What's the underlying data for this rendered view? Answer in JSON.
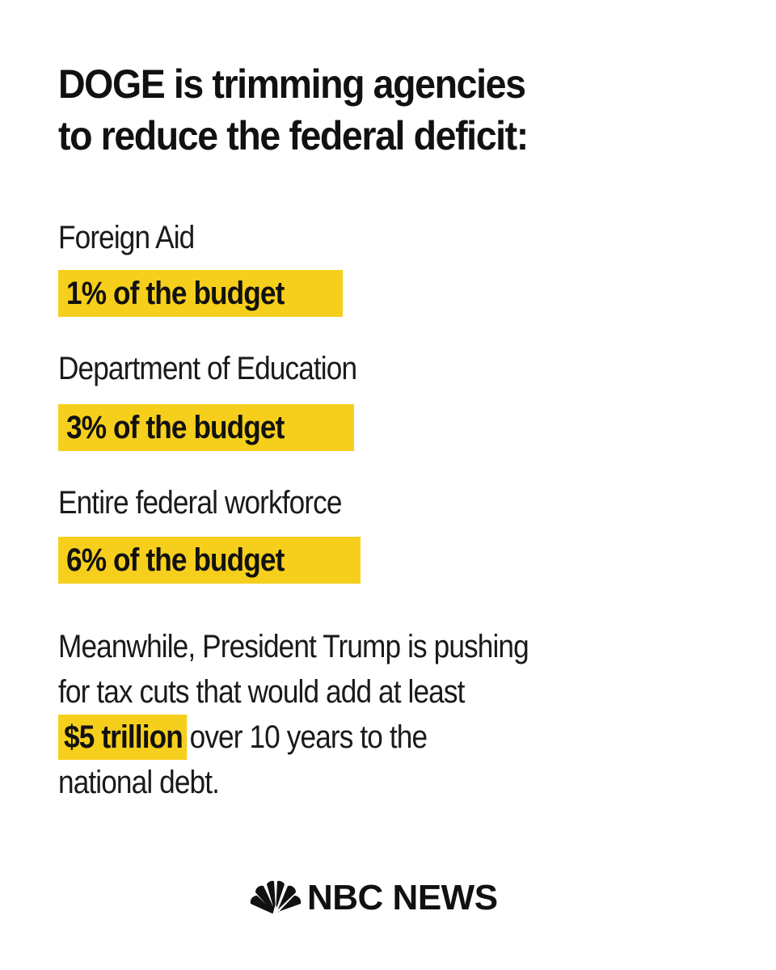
{
  "headline": {
    "line1": "DOGE is trimming agencies",
    "line2": "to reduce the federal deficit:"
  },
  "items": [
    {
      "label": "Foreign Aid",
      "value": "1% of the budget"
    },
    {
      "label": "Department of Education",
      "value": "3% of the budget"
    },
    {
      "label": "Entire federal workforce",
      "value": "6% of the budget"
    }
  ],
  "closing": {
    "line1": "Meanwhile, President Trump is pushing",
    "line2": "for tax cuts that would add at least",
    "amount": "$5 trillion",
    "line3_rest": "over 10 years to the",
    "line4": "national debt."
  },
  "logo": {
    "text": "NBC NEWS",
    "icon": "peacock-icon"
  },
  "colors": {
    "highlight": "#f6cf1c",
    "text": "#111111",
    "background": "#ffffff"
  }
}
